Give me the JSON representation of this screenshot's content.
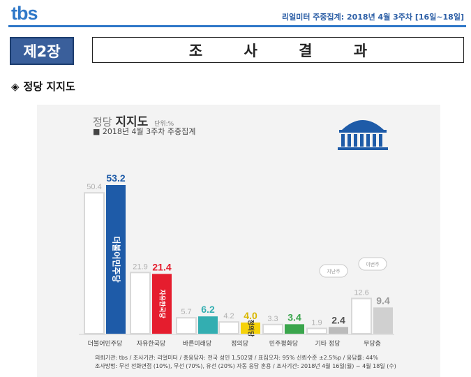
{
  "header": {
    "logo": "tbs",
    "survey_info": "리얼미터 주중집계: 2018년 4월 3주차 [16일~18일]"
  },
  "chapter": {
    "badge": "제2장",
    "title": "조 사 결 과"
  },
  "section": {
    "bullet": "◈",
    "title": "정당 지지도"
  },
  "chart_meta": {
    "title_light": "정당",
    "title_bold": "지지도",
    "unit": "단위:%",
    "subtitle": "■ 2018년 4월 3주차 주중집계"
  },
  "chart_data": {
    "type": "bar",
    "unit": "%",
    "categories": [
      "더불어민주당",
      "자유한국당",
      "바른미래당",
      "정의당",
      "민주평화당",
      "기타 정당",
      "무당층"
    ],
    "series": [
      {
        "period": "previous",
        "values": [
          50.4,
          21.9,
          5.7,
          4.2,
          3.3,
          1.9,
          12.6
        ]
      },
      {
        "period": "current",
        "values": [
          53.2,
          21.4,
          6.2,
          4.0,
          3.4,
          2.4,
          9.4
        ]
      }
    ],
    "bar_inner_labels": [
      "더불어민주당",
      "자유한국당",
      "",
      "정의당",
      "",
      "",
      ""
    ],
    "bubbles": [
      "지난주",
      "이번주"
    ],
    "colors": {
      "previous": "#ffffff",
      "current": [
        "#1e5ba8",
        "#e51d2e",
        "#33aeb1",
        "#f5d20a",
        "#3aa54c",
        "#bbbbbb",
        "#d0d0d0"
      ],
      "current_labels": [
        "#1e5ba8",
        "#e51d2e",
        "#33aeb1",
        "#d9b800",
        "#3aa54c",
        "#555555",
        "#999999"
      ]
    },
    "ylim": [
      0,
      60
    ]
  },
  "notes": {
    "line1": "의뢰기관: tbs / 조사기관: 리얼미터 / 총응답자: 전국 성인 1,502명 / 표집오차: 95% 신뢰수준 ±2.5%p / 응답률: 44%",
    "line2": "조사방법: 무선 전화면접 (10%), 무선 (70%), 유선 (20%) 자동 응답 혼용 / 조사기간: 2018년 4월 16일(월) ~ 4월 18일 (수)"
  }
}
